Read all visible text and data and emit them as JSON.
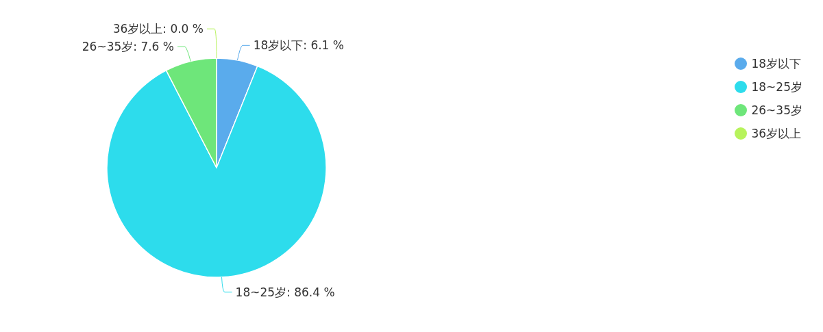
{
  "chart_data": {
    "type": "pie",
    "categories": [
      "18岁以下",
      "18~25岁",
      "26~35岁",
      "36岁以上"
    ],
    "values": [
      6.1,
      86.4,
      7.6,
      0.0
    ],
    "value_labels": [
      "18岁以下: 6.1 %",
      "18~25岁: 86.4 %",
      "26~35岁: 7.6 %",
      "36岁以上: 0.0 %"
    ],
    "colors": [
      "#5aabec",
      "#2ddcec",
      "#6ee67a",
      "#b7f35c"
    ],
    "legend": "top right"
  }
}
